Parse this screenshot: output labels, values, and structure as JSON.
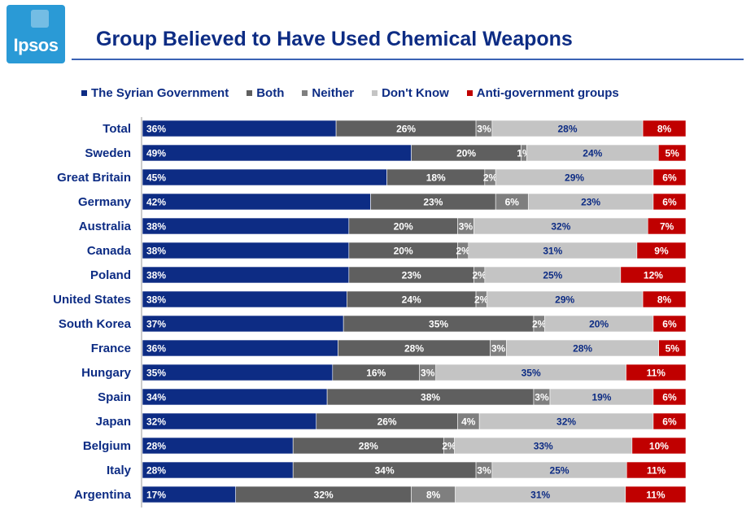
{
  "logo": {
    "text": "Ipsos"
  },
  "colors": {
    "accent": "#0d2c84",
    "logo_bg": "#2a9ad6",
    "series": [
      "#0d2c84",
      "#5f5f5f",
      "#7f7f7f",
      "#c4c4c4",
      "#c00000"
    ],
    "label_colors": [
      "#ffffff",
      "#ffffff",
      "#ffffff",
      "#0d2c84",
      "#ffffff"
    ]
  },
  "chart_data": {
    "type": "bar",
    "orientation": "horizontal",
    "stacked": true,
    "title": "Group Believed to Have Used Chemical Weapons",
    "legend_position": "top",
    "grid": false,
    "xlim": [
      0,
      100
    ],
    "categories": [
      "Total",
      "Sweden",
      "Great Britain",
      "Germany",
      "Australia",
      "Canada",
      "Poland",
      "United States",
      "South Korea",
      "France",
      "Hungary",
      "Spain",
      "Japan",
      "Belgium",
      "Italy",
      "Argentina"
    ],
    "series": [
      {
        "name": "The Syrian Government",
        "values": [
          36,
          49,
          45,
          42,
          38,
          38,
          38,
          38,
          37,
          36,
          35,
          34,
          32,
          28,
          28,
          17
        ]
      },
      {
        "name": "Both",
        "values": [
          26,
          20,
          18,
          23,
          20,
          20,
          23,
          24,
          35,
          28,
          16,
          38,
          26,
          28,
          34,
          32
        ]
      },
      {
        "name": "Neither",
        "values": [
          3,
          1,
          2,
          6,
          3,
          2,
          2,
          2,
          2,
          3,
          3,
          3,
          4,
          2,
          3,
          8
        ]
      },
      {
        "name": "Don't Know",
        "values": [
          28,
          24,
          29,
          23,
          32,
          31,
          25,
          29,
          20,
          28,
          35,
          19,
          32,
          33,
          25,
          31
        ]
      },
      {
        "name": "Anti-government groups",
        "values": [
          8,
          5,
          6,
          6,
          7,
          9,
          12,
          8,
          6,
          5,
          11,
          6,
          6,
          10,
          11,
          11
        ]
      }
    ]
  }
}
